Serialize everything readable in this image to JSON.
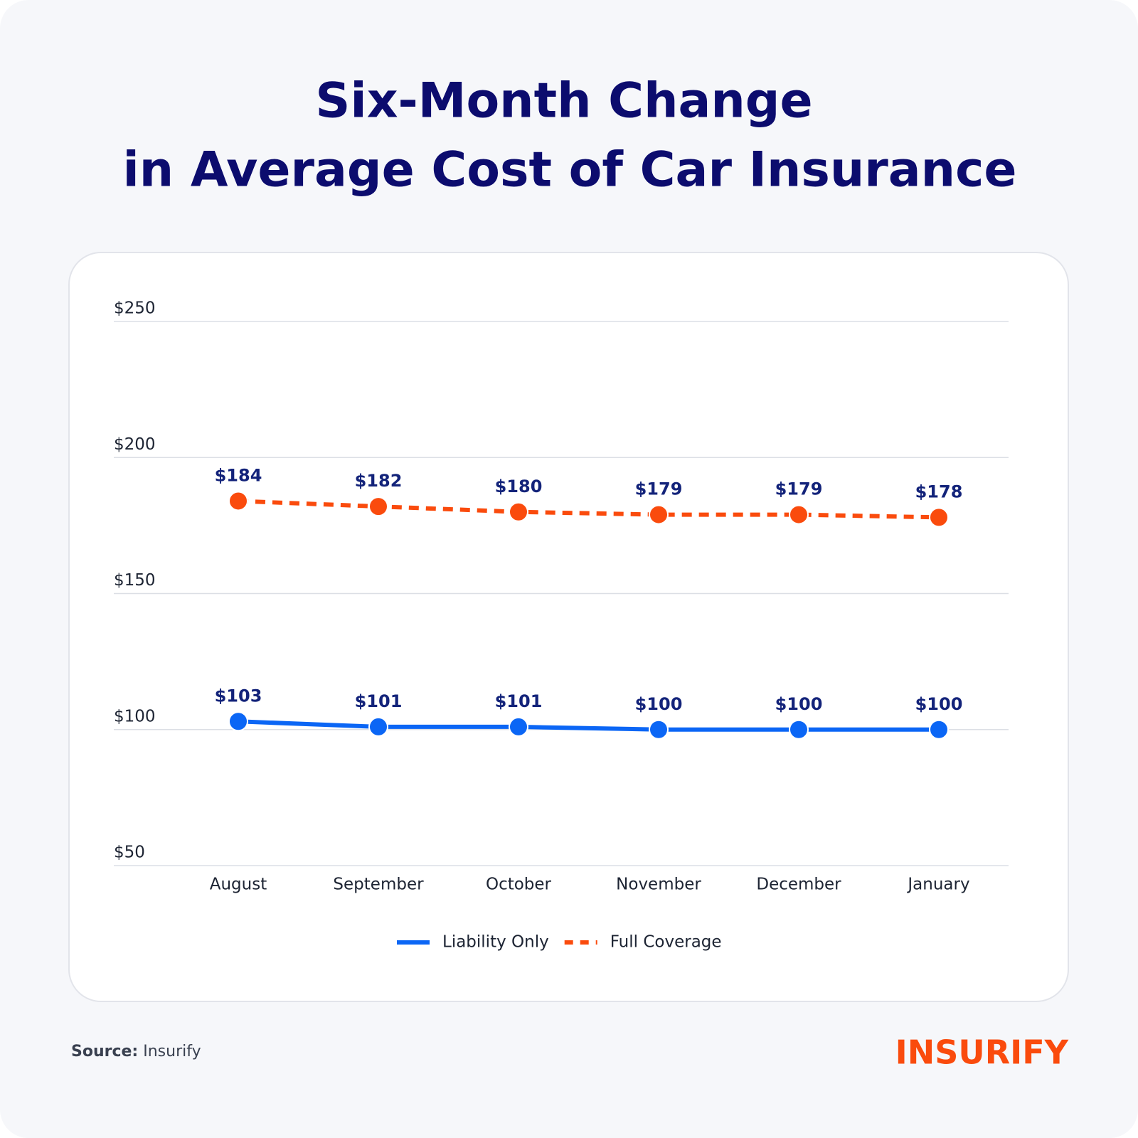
{
  "chart_data": {
    "type": "line",
    "title": [
      "Six-Month Change",
      "in Average Cost of Car Insurance"
    ],
    "categories": [
      "August",
      "September",
      "October",
      "November",
      "December",
      "January"
    ],
    "series": [
      {
        "name": "Liability Only",
        "color": "#0b66f5",
        "dashed": false,
        "values": [
          103,
          101,
          101,
          100,
          100,
          100
        ],
        "value_labels": [
          "$103",
          "$101",
          "$101",
          "$100",
          "$100",
          "$100"
        ]
      },
      {
        "name": "Full Coverage",
        "color": "#fa4b0d",
        "dashed": true,
        "values": [
          184,
          182,
          180,
          179,
          179,
          178
        ],
        "value_labels": [
          "$184",
          "$182",
          "$180",
          "$179",
          "$179",
          "$178"
        ]
      }
    ],
    "ylim": [
      50,
      250
    ],
    "yticks": [
      {
        "value": 50,
        "label": "$50"
      },
      {
        "value": 100,
        "label": "$100"
      },
      {
        "value": 150,
        "label": "$150"
      },
      {
        "value": 200,
        "label": "$200"
      },
      {
        "value": 250,
        "label": "$250"
      }
    ],
    "grid": true,
    "legend": "bottom"
  },
  "footer": {
    "source_label": "Source:",
    "source": "Insurify",
    "logo": "INSURIFY"
  }
}
